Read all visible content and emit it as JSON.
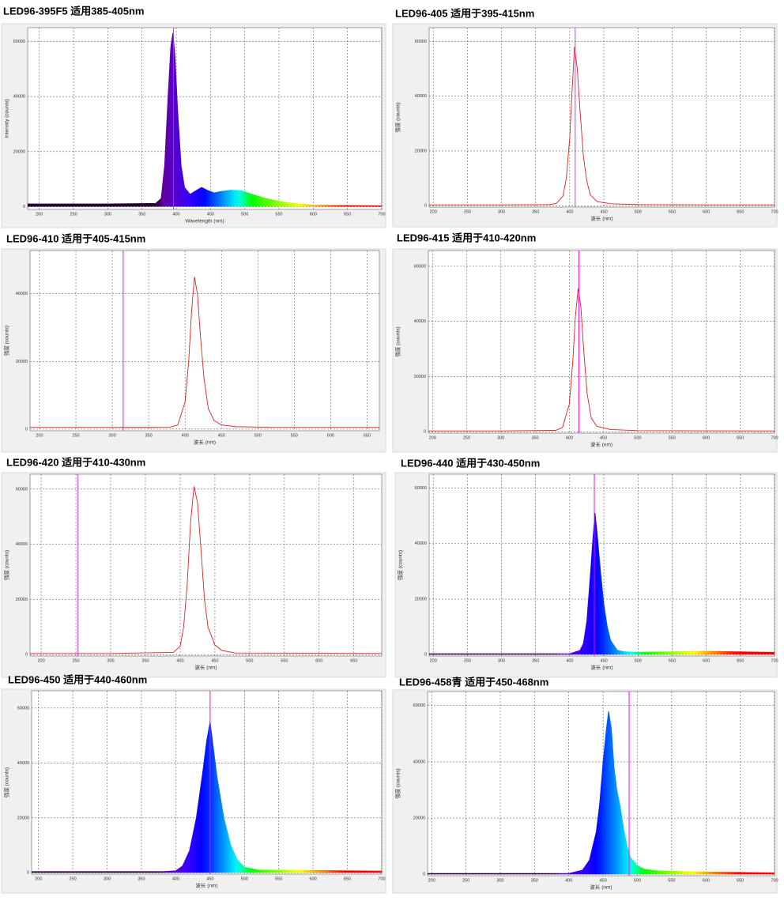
{
  "chart_data": [
    {
      "type": "area",
      "title": "LED96-395F5  适用385-405nm",
      "xlabel": "Wavelength (nm)",
      "ylabel": "Intensity (counts)",
      "xlim": [
        183,
        700
      ],
      "ylim": [
        -1000,
        65000
      ],
      "xticks": [
        200,
        250,
        300,
        350,
        400,
        450,
        500,
        550,
        600,
        650,
        700
      ],
      "yticks": [
        0,
        20000,
        40000,
        60000
      ],
      "grid": true,
      "vline": 396,
      "vline_color": "#ff00ff",
      "color": "spectrum",
      "x": [
        183,
        300,
        370,
        378,
        383,
        388,
        392,
        395,
        398,
        402,
        407,
        412,
        420,
        430,
        437,
        445,
        455,
        465,
        480,
        495,
        510,
        530,
        560,
        600,
        700
      ],
      "values": [
        1000,
        1000,
        1200,
        3000,
        15000,
        40000,
        58000,
        63000,
        55000,
        35000,
        15000,
        7000,
        4500,
        6000,
        7000,
        6000,
        5000,
        5500,
        6000,
        5800,
        4500,
        3000,
        1500,
        500,
        300
      ]
    },
    {
      "type": "line",
      "title": "LED96-405 适用于395-415nm",
      "xlabel": "波长 (nm)",
      "ylabel": "强度 (counts)",
      "xlim": [
        194,
        700
      ],
      "ylim": [
        -500,
        65000
      ],
      "xticks": [
        200,
        250,
        300,
        350,
        400,
        450,
        500,
        550,
        600,
        650,
        700
      ],
      "yticks": [
        0,
        20000,
        40000,
        60000
      ],
      "grid": true,
      "vline": 408,
      "vline_color": "#c040ff",
      "color": "#e02020",
      "x": [
        194,
        300,
        370,
        380,
        390,
        395,
        400,
        403,
        407,
        411,
        415,
        420,
        425,
        430,
        440,
        460,
        500,
        600,
        700
      ],
      "values": [
        300,
        300,
        400,
        800,
        3500,
        10000,
        25000,
        40000,
        58000,
        50000,
        35000,
        18000,
        9000,
        4000,
        1500,
        700,
        400,
        300,
        300
      ]
    },
    {
      "type": "line",
      "title": "LED96-410 适用于405-415nm",
      "xlabel": "波长 (nm)",
      "ylabel": "强度 (counts)",
      "xlim": [
        187,
        667
      ],
      "ylim": [
        -500,
        52800
      ],
      "xticks": [
        200,
        250,
        300,
        350,
        400,
        450,
        500,
        550,
        600,
        650
      ],
      "yticks": [
        0,
        20000,
        40000
      ],
      "grid": true,
      "vline": 315,
      "vline_color": "#ff00ff",
      "color": "#e02020",
      "x": [
        187,
        300,
        380,
        390,
        400,
        405,
        409,
        413,
        417,
        421,
        426,
        432,
        440,
        450,
        470,
        520,
        667
      ],
      "values": [
        500,
        500,
        600,
        1200,
        8000,
        20000,
        35000,
        45000,
        40000,
        28000,
        15000,
        6000,
        2500,
        1200,
        700,
        500,
        500
      ]
    },
    {
      "type": "line",
      "title": "LED96-415 适用于410-420nm",
      "xlabel": "波长 (nm)",
      "ylabel": "强度 (counts)",
      "xlim": [
        194,
        700
      ],
      "ylim": [
        -500,
        65700
      ],
      "xticks": [
        200,
        250,
        300,
        350,
        400,
        450,
        500,
        550,
        600,
        650,
        700
      ],
      "yticks": [
        0,
        20000,
        40000,
        60000
      ],
      "grid": true,
      "vline": 414,
      "vline_color": "#ff00ff",
      "color": "#e02020",
      "x": [
        194,
        300,
        380,
        390,
        400,
        405,
        409,
        413,
        417,
        421,
        426,
        432,
        440,
        460,
        500,
        700
      ],
      "values": [
        300,
        300,
        500,
        1500,
        10000,
        25000,
        42000,
        52000,
        45000,
        30000,
        14000,
        5000,
        2000,
        800,
        400,
        300
      ]
    },
    {
      "type": "line",
      "title": "LED96-420 适用于410-430nm",
      "xlabel": "波长 (nm)",
      "ylabel": "强度 (counts)",
      "xlim": [
        184,
        690
      ],
      "ylim": [
        -500,
        65400
      ],
      "xticks": [
        200,
        250,
        300,
        350,
        400,
        450,
        500,
        550,
        600,
        650
      ],
      "yticks": [
        0,
        20000,
        40000,
        60000
      ],
      "grid": true,
      "vline": 253,
      "vline_color": "#c040ff",
      "color": "#e02020",
      "x": [
        184,
        300,
        390,
        400,
        405,
        410,
        415,
        420,
        425,
        430,
        435,
        440,
        450,
        460,
        480,
        690
      ],
      "values": [
        400,
        400,
        800,
        3000,
        10000,
        25000,
        48000,
        61000,
        55000,
        38000,
        20000,
        10000,
        3500,
        1500,
        600,
        400
      ]
    },
    {
      "type": "area",
      "title": "LED96-440 适用于430-450nm",
      "xlabel": "波长 (nm)",
      "ylabel": "强度 (counts)",
      "xlim": [
        194,
        700
      ],
      "ylim": [
        -500,
        65000
      ],
      "xticks": [
        200,
        250,
        300,
        350,
        400,
        450,
        500,
        550,
        600,
        650,
        700
      ],
      "yticks": [
        0,
        20000,
        40000,
        60000
      ],
      "grid": true,
      "vline": 436,
      "vline_color": "#ff00ff",
      "color": "spectrum",
      "x": [
        194,
        400,
        415,
        420,
        425,
        430,
        434,
        437,
        440,
        445,
        450,
        455,
        460,
        470,
        480,
        500,
        600,
        700
      ],
      "values": [
        300,
        300,
        1500,
        4000,
        12000,
        28000,
        42000,
        51000,
        44000,
        30000,
        18000,
        10000,
        5000,
        1500,
        1000,
        800,
        1200,
        800
      ]
    },
    {
      "type": "area",
      "title": "LED96-450 适用于440-460nm",
      "xlabel": "波长 (nm)",
      "ylabel": "强度 (counts)",
      "xlim": [
        190,
        700
      ],
      "ylim": [
        -500,
        66300
      ],
      "xticks": [
        200,
        250,
        300,
        350,
        400,
        450,
        500,
        550,
        600,
        650,
        700
      ],
      "yticks": [
        0,
        20000,
        40000,
        60000
      ],
      "grid": true,
      "vline": 450,
      "vline_color": "#ff00ff",
      "color": "spectrum",
      "x": [
        190,
        380,
        400,
        410,
        420,
        430,
        440,
        445,
        450,
        455,
        460,
        470,
        480,
        490,
        500,
        520,
        600,
        700
      ],
      "values": [
        400,
        400,
        700,
        2500,
        8000,
        20000,
        38000,
        48000,
        55000,
        45000,
        35000,
        20000,
        10000,
        4500,
        2000,
        1000,
        800,
        600
      ]
    },
    {
      "type": "area",
      "title": "LED96-458青 适用于450-468nm",
      "xlabel": "波长 (nm)",
      "ylabel": "强度 (counts)",
      "xlim": [
        194,
        700
      ],
      "ylim": [
        -500,
        65000
      ],
      "xticks": [
        200,
        250,
        300,
        350,
        400,
        450,
        500,
        550,
        600,
        650,
        700
      ],
      "yticks": [
        0,
        20000,
        40000,
        60000
      ],
      "grid": true,
      "vline": 488,
      "vline_color": "#ff00ff",
      "color": "spectrum",
      "x": [
        194,
        400,
        420,
        430,
        440,
        445,
        450,
        455,
        458,
        462,
        466,
        470,
        475,
        480,
        485,
        490,
        500,
        510,
        530,
        600,
        700
      ],
      "values": [
        300,
        300,
        1500,
        5000,
        15000,
        25000,
        40000,
        52000,
        58000,
        52000,
        38000,
        30000,
        24000,
        16000,
        10000,
        6000,
        3000,
        1800,
        1200,
        800,
        500
      ]
    }
  ]
}
